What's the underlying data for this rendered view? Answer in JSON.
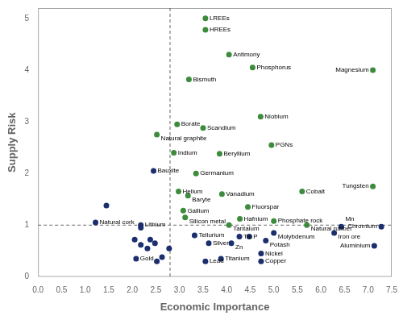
{
  "chart_data": {
    "type": "scatter",
    "xlabel": "Economic Importance",
    "ylabel": "Supply Risk",
    "xlim": [
      0.0,
      7.5
    ],
    "ylim": [
      0.0,
      5.2
    ],
    "xticks": [
      {
        "value": 0.0,
        "label": "0.0"
      },
      0.5,
      {
        "value": 1.0,
        "label": "1.0"
      },
      1.5,
      {
        "value": 2.0,
        "label": "2.0"
      },
      2.5,
      {
        "value": 3.0,
        "label": "3.0"
      },
      3.5,
      {
        "value": 4.0,
        "label": "4.0"
      },
      4.5,
      {
        "value": 5.0,
        "label": "5.0"
      },
      5.5,
      {
        "value": 6.0,
        "label": "6.0"
      },
      6.5,
      {
        "value": 7.0,
        "label": "7.0"
      },
      7.5
    ],
    "yticks": [
      0,
      1,
      2,
      3,
      4,
      5
    ],
    "grid": false,
    "vline_x": 2.8,
    "hline_y": 1.0,
    "x": [
      1.45,
      2.05,
      2.18,
      2.32,
      2.38,
      2.48,
      2.52,
      2.63,
      2.78,
      2.18,
      3.55,
      3.55,
      4.05,
      4.55,
      7.1,
      3.2,
      2.95,
      3.5,
      4.72,
      2.52,
      2.88,
      3.85,
      4.95,
      2.45,
      3.35,
      5.6,
      7.1,
      2.98,
      3.18,
      3.9,
      4.45,
      3.08,
      3.12,
      4.28,
      5.0,
      5.7,
      4.05,
      1.22,
      2.18,
      3.32,
      4.27,
      4.48,
      6.43,
      5.0,
      6.28,
      7.28,
      3.62,
      4.1,
      4.83,
      7.13,
      3.55,
      3.88,
      4.73,
      4.73,
      2.08
    ],
    "y": [
      1.38,
      0.72,
      0.62,
      0.55,
      0.72,
      0.65,
      0.3,
      0.38,
      0.55,
      0.95,
      5.0,
      4.78,
      4.3,
      4.05,
      4.0,
      3.82,
      2.95,
      2.88,
      3.1,
      2.75,
      2.4,
      2.38,
      2.55,
      2.05,
      2.0,
      1.65,
      1.75,
      1.65,
      1.57,
      1.6,
      1.35,
      1.28,
      1.15,
      1.12,
      1.08,
      1.0,
      1.0,
      1.05,
      1.0,
      0.8,
      0.78,
      0.78,
      0.97,
      0.85,
      0.85,
      0.97,
      0.65,
      0.65,
      0.7,
      0.6,
      0.3,
      0.35,
      0.45,
      0.3,
      0.35
    ],
    "labels": [
      null,
      null,
      null,
      null,
      null,
      null,
      null,
      null,
      null,
      null,
      "LREEs",
      "HREEs",
      "Antimony",
      "Phosphorus",
      "Magnesium",
      "Bismuth",
      "Borate",
      "Scandium",
      "Niobium",
      "Natural graphite",
      "Indium",
      "Beryllium",
      "PGNs",
      "Bauxite",
      "Germanium",
      "Cobalt",
      "Tungsten",
      "Helium",
      "Baryte",
      "Vanadium",
      "Fluorspar",
      "Gallium",
      "Silicon metal",
      "Hafnium",
      "Phosphate rock",
      "Natural rubber",
      "Tantalum",
      "Natural cork",
      "Lithium",
      "Tellurium",
      "Tin",
      "P",
      "Mn",
      "Molybdenum",
      "Iron ore",
      "Chromium",
      "Silver",
      "Zn",
      "Potash",
      "Aluminium",
      "Lead",
      "Titanium",
      "Nickel",
      "Copper",
      "Gold"
    ],
    "colors": [
      "#1b2f6e",
      "#1b2f6e",
      "#1b2f6e",
      "#1b2f6e",
      "#1b2f6e",
      "#1b2f6e",
      "#1b2f6e",
      "#1b2f6e",
      "#1b2f6e",
      "#1b2f6e",
      "#3d8c3d",
      "#3d8c3d",
      "#3d8c3d",
      "#3d8c3d",
      "#3d8c3d",
      "#3d8c3d",
      "#3d8c3d",
      "#3d8c3d",
      "#3d8c3d",
      "#3d8c3d",
      "#3d8c3d",
      "#3d8c3d",
      "#3d8c3d",
      "#1b2f6e",
      "#3d8c3d",
      "#3d8c3d",
      "#3d8c3d",
      "#3d8c3d",
      "#3d8c3d",
      "#3d8c3d",
      "#3d8c3d",
      "#3d8c3d",
      "#3d8c3d",
      "#3d8c3d",
      "#3d8c3d",
      "#3d8c3d",
      "#3d8c3d",
      "#1b2f6e",
      "#1b2f6e",
      "#1b2f6e",
      "#1b2f6e",
      "#1b2f6e",
      "#1b2f6e",
      "#1b2f6e",
      "#1b2f6e",
      "#1b2f6e",
      "#1b2f6e",
      "#1b2f6e",
      "#1b2f6e",
      "#1b2f6e",
      "#1b2f6e",
      "#1b2f6e",
      "#1b2f6e",
      "#1b2f6e",
      "#1b2f6e"
    ]
  }
}
